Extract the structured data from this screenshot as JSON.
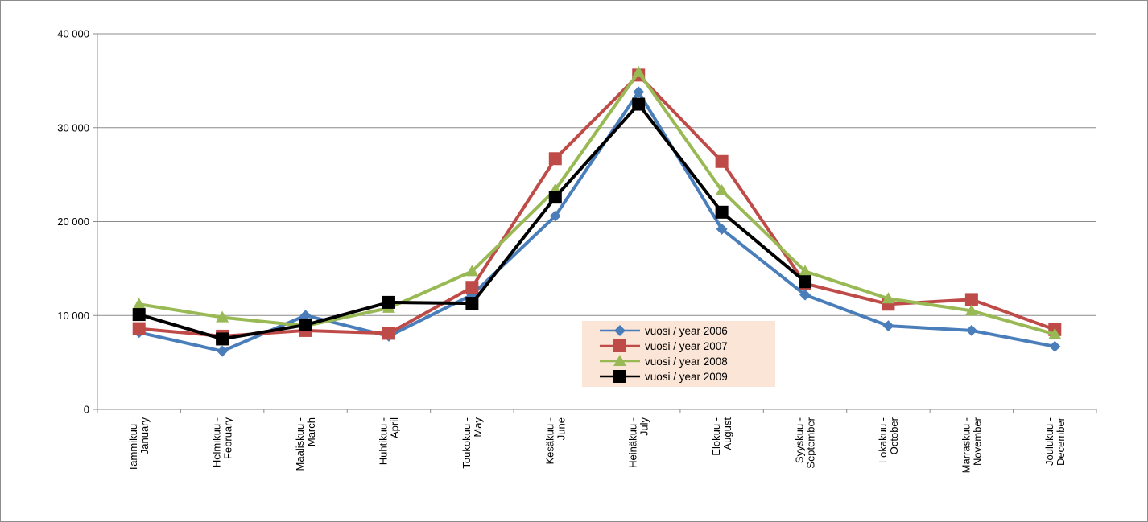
{
  "chart_data": {
    "type": "line",
    "title": "",
    "xlabel": "",
    "ylabel": "",
    "ylim": [
      0,
      40000
    ],
    "y_ticks": [
      {
        "value": 0,
        "label": "0"
      },
      {
        "value": 10000,
        "label": "10 000"
      },
      {
        "value": 20000,
        "label": "20 000"
      },
      {
        "value": 30000,
        "label": "30 000"
      },
      {
        "value": 40000,
        "label": "40 000"
      }
    ],
    "grid": "horizontal",
    "legend_position": "center-right",
    "categories": [
      [
        "Tammikuu -",
        "January"
      ],
      [
        "Helmikuu -",
        "February"
      ],
      [
        "Maaliskuu -",
        "March"
      ],
      [
        "Huhtikuu -",
        "April"
      ],
      [
        "Toukokuu -",
        "May"
      ],
      [
        "Kesäkuu -",
        "June"
      ],
      [
        "Heinäkuu -",
        "July"
      ],
      [
        "Elokuu -",
        "August"
      ],
      [
        "Syyskuu -",
        "September"
      ],
      [
        "Lokakuu -",
        "October"
      ],
      [
        "Marraskuu -",
        "November"
      ],
      [
        "Joulukuu -",
        "December"
      ]
    ],
    "series": [
      {
        "name": "vuosi / year 2006",
        "color": "#4a7ebb",
        "marker": "diamond",
        "values": [
          8200,
          6200,
          10000,
          7800,
          12200,
          20600,
          33800,
          19200,
          12200,
          8900,
          8400,
          6700
        ]
      },
      {
        "name": "vuosi / year 2007",
        "color": "#be4b48",
        "marker": "square",
        "values": [
          8600,
          7800,
          8400,
          8100,
          13000,
          26700,
          35600,
          26400,
          13400,
          11200,
          11700,
          8500
        ]
      },
      {
        "name": "vuosi / year 2008",
        "color": "#98b954",
        "marker": "triangle",
        "values": [
          11200,
          9800,
          8900,
          10800,
          14700,
          23400,
          35900,
          23300,
          14700,
          11800,
          10500,
          8000
        ]
      },
      {
        "name": "vuosi / year 2009",
        "color": "#000000",
        "marker": "square",
        "values": [
          10100,
          7500,
          9000,
          11400,
          11300,
          22600,
          32500,
          21000,
          13600,
          null,
          null,
          null
        ]
      }
    ],
    "legend_background": "#fbe5d6"
  }
}
